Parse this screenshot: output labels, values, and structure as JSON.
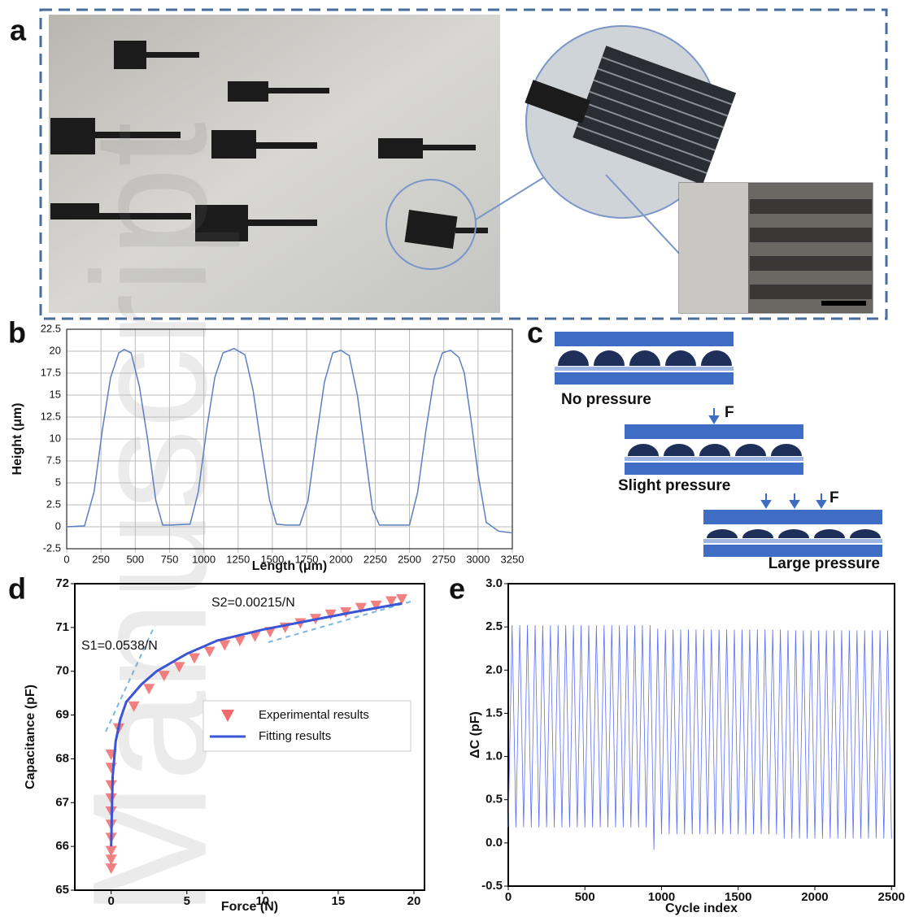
{
  "panel_labels": [
    "a",
    "b",
    "c",
    "d",
    "e"
  ],
  "watermark": "Manuscript",
  "diagram": {
    "states": [
      "No pressure",
      "Slight pressure",
      "Large pressure"
    ],
    "force_label": "F"
  },
  "chart_data": [
    {
      "type": "line",
      "ylabel": "Height (μm)",
      "xlabel": "Length (μm)",
      "color": "#5b7fc1",
      "grid": true,
      "x": [
        0,
        130,
        200,
        260,
        320,
        380,
        420,
        470,
        530,
        590,
        650,
        700,
        760,
        900,
        960,
        1020,
        1080,
        1140,
        1220,
        1300,
        1360,
        1420,
        1480,
        1530,
        1600,
        1700,
        1760,
        1820,
        1880,
        1940,
        2000,
        2060,
        2120,
        2180,
        2230,
        2280,
        2330,
        2400,
        2500,
        2560,
        2620,
        2680,
        2740,
        2800,
        2860,
        2900,
        2950,
        3000,
        3060,
        3150,
        3250
      ],
      "values": [
        0,
        0.1,
        4,
        11,
        17,
        19.8,
        20.2,
        19.8,
        16,
        10,
        3,
        0.2,
        0.2,
        0.3,
        4,
        11,
        17,
        19.8,
        20.3,
        19.6,
        15.5,
        9,
        3,
        0.3,
        0.2,
        0.2,
        3,
        10,
        16.5,
        19.8,
        20.1,
        19.5,
        15,
        8,
        2,
        0.2,
        0.2,
        0.2,
        0.2,
        4,
        11,
        17,
        19.8,
        20.1,
        19.3,
        17.5,
        12,
        6,
        0.5,
        -0.5,
        -0.7
      ],
      "xlim": [
        0,
        3250
      ],
      "ylim": [
        -2.5,
        22.5
      ],
      "xticks": [
        0,
        250,
        500,
        750,
        1000,
        1250,
        1500,
        1750,
        2000,
        2250,
        2500,
        2750,
        3000,
        3250
      ],
      "yticks": [
        -2.5,
        0,
        2.5,
        5,
        7.5,
        10,
        12.5,
        15,
        17.5,
        20,
        22.5
      ]
    },
    {
      "type": "scatter",
      "ylabel": "Capacitance (pF)",
      "xlabel": "Force (N)",
      "grid": false,
      "legend": "center right",
      "annotations": [
        "S1=0.0538/N",
        "S2=0.00215/N"
      ],
      "series": [
        {
          "name": "Experimental results",
          "color": "#f06a6a",
          "x": [
            0,
            0,
            0,
            0,
            0,
            0,
            0,
            0,
            0,
            0,
            0.5,
            1.5,
            2.5,
            3.5,
            4.5,
            5.5,
            6.5,
            7.5,
            8.5,
            9.5,
            10.5,
            11.5,
            12.5,
            13.5,
            14.5,
            15.5,
            16.5,
            17.5,
            18.5,
            19.2
          ],
          "values": [
            65.5,
            65.7,
            65.9,
            66.2,
            66.5,
            66.8,
            67.1,
            67.4,
            67.8,
            68.1,
            68.7,
            69.2,
            69.6,
            69.9,
            70.1,
            70.3,
            70.45,
            70.6,
            70.7,
            70.8,
            70.9,
            71.0,
            71.1,
            71.2,
            71.3,
            71.35,
            71.45,
            71.5,
            71.6,
            71.65
          ]
        },
        {
          "name": "Fitting results",
          "color": "#3b55d6",
          "type": "line",
          "x": [
            0,
            0.1,
            0.3,
            0.6,
            1,
            2,
            3,
            5,
            7,
            10,
            13,
            16,
            19.2
          ],
          "values": [
            66.0,
            67.6,
            68.4,
            68.9,
            69.3,
            69.7,
            70.0,
            70.4,
            70.7,
            70.95,
            71.15,
            71.35,
            71.55
          ]
        }
      ],
      "xlim": [
        -2.4,
        20.7
      ],
      "ylim": [
        65,
        72
      ],
      "xticks": [
        0,
        5,
        10,
        15,
        20
      ],
      "yticks": [
        65,
        66,
        67,
        68,
        69,
        70,
        71,
        72
      ]
    },
    {
      "type": "line",
      "ylabel": "ΔC (pF)",
      "xlabel": "Cycle index",
      "color": "#5b6ef5",
      "grid": false,
      "x": [
        0,
        25,
        50,
        75,
        100,
        125,
        150,
        175,
        200,
        225,
        250,
        275,
        300,
        325,
        350,
        375,
        400,
        425,
        450,
        475,
        500,
        525,
        550,
        575,
        600,
        625,
        650,
        675,
        700,
        725,
        750,
        775,
        800,
        825,
        850,
        875,
        900,
        925,
        950,
        975,
        1000,
        1025,
        1050,
        1075,
        1100,
        1125,
        1150,
        1175,
        1200,
        1225,
        1250,
        1275,
        1300,
        1325,
        1350,
        1375,
        1400,
        1425,
        1450,
        1475,
        1500,
        1525,
        1550,
        1575,
        1600,
        1625,
        1650,
        1675,
        1700,
        1725,
        1750,
        1775,
        1800,
        1825,
        1850,
        1875,
        1900,
        1925,
        1950,
        1975,
        2000,
        2025,
        2050,
        2075,
        2100,
        2125,
        2150,
        2175,
        2200,
        2225,
        2250,
        2275,
        2300,
        2325,
        2350,
        2375,
        2400,
        2425,
        2450,
        2475,
        2500
      ],
      "values": [
        0.18,
        2.52,
        0.18,
        2.52,
        0.18,
        2.52,
        0.18,
        2.52,
        0.18,
        2.52,
        0.18,
        2.52,
        0.18,
        2.52,
        0.18,
        2.52,
        0.18,
        2.52,
        0.18,
        2.52,
        0.18,
        2.52,
        0.18,
        2.52,
        0.18,
        2.52,
        0.18,
        2.52,
        0.18,
        2.52,
        0.18,
        2.52,
        0.18,
        2.52,
        0.18,
        2.52,
        0.18,
        2.52,
        -0.08,
        2.48,
        0.1,
        2.47,
        0.1,
        2.47,
        0.1,
        2.47,
        0.1,
        2.47,
        0.1,
        2.47,
        0.1,
        2.47,
        0.1,
        2.47,
        0.1,
        2.47,
        0.1,
        2.47,
        0.1,
        2.47,
        0.1,
        2.47,
        0.1,
        2.47,
        0.1,
        2.47,
        0.1,
        2.47,
        0.1,
        2.47,
        0.1,
        2.47,
        0.05,
        2.46,
        0.05,
        2.46,
        0.05,
        2.46,
        0.05,
        2.46,
        0.05,
        2.46,
        0.05,
        2.46,
        0.05,
        2.46,
        0.05,
        2.46,
        0.05,
        2.46,
        0.05,
        2.46,
        0.05,
        2.46,
        0.05,
        2.46,
        0.05,
        2.46,
        0.05,
        2.46,
        0.05
      ],
      "xlim": [
        0,
        2520
      ],
      "ylim": [
        -0.5,
        3.0
      ],
      "xticks": [
        0,
        500,
        1000,
        1500,
        2000,
        2500
      ],
      "yticks": [
        -0.5,
        {
          "value": 0,
          "label": "0.0"
        },
        0.5,
        {
          "value": 1,
          "label": "1.0"
        },
        1.5,
        {
          "value": 2,
          "label": "2.0"
        },
        2.5,
        {
          "value": 3,
          "label": "3.0"
        }
      ]
    }
  ]
}
